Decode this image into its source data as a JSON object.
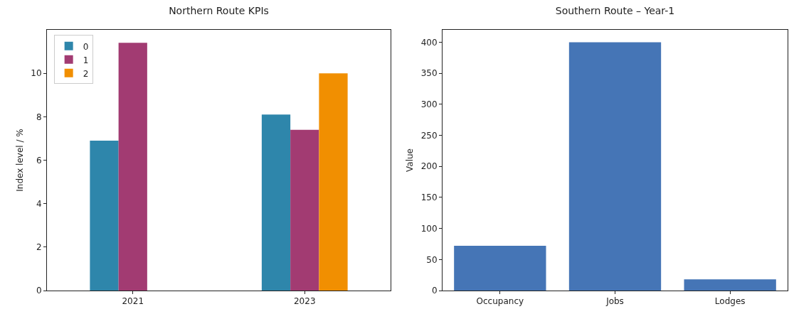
{
  "chart_data": [
    {
      "type": "bar",
      "title": "Northern Route KPIs",
      "ylabel": "Index level / %",
      "categories": [
        "2021",
        "2023"
      ],
      "series": [
        {
          "name": "0",
          "color": "#2e86ab",
          "values": [
            6.9,
            8.1
          ]
        },
        {
          "name": "1",
          "color": "#a23b72",
          "values": [
            11.4,
            7.4
          ]
        },
        {
          "name": "2",
          "color": "#f18f01",
          "values": [
            null,
            10.0
          ]
        }
      ],
      "ylim": [
        0,
        12
      ],
      "yticks": [
        0,
        2,
        4,
        6,
        8,
        10
      ],
      "grid": false,
      "legend": "top left"
    },
    {
      "type": "bar",
      "title": "Southern Route – Year-1",
      "ylabel": "Value",
      "categories": [
        "Occupancy",
        "Jobs",
        "Lodges"
      ],
      "values": [
        72,
        400,
        18
      ],
      "color": "#4575b6",
      "ylim": [
        0,
        420
      ],
      "yticks": [
        0,
        50,
        100,
        150,
        200,
        250,
        300,
        350,
        400
      ],
      "grid": false
    }
  ]
}
